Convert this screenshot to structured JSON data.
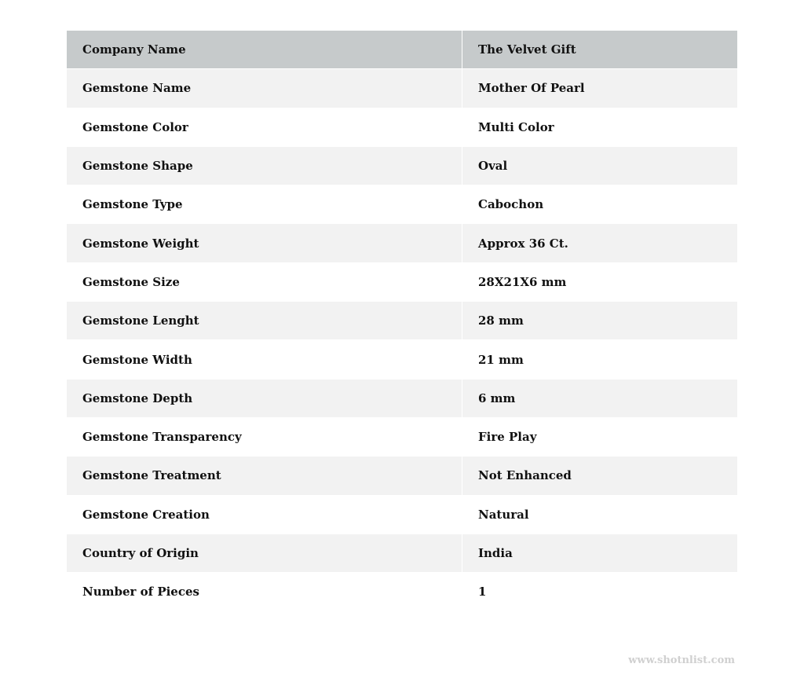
{
  "header": {
    "label": "Company Name",
    "value": "The Velvet Gift"
  },
  "rows": [
    {
      "label": "Gemstone Name",
      "value": "Mother Of Pearl"
    },
    {
      "label": "Gemstone Color",
      "value": "Multi Color"
    },
    {
      "label": "Gemstone Shape",
      "value": "Oval"
    },
    {
      "label": "Gemstone Type",
      "value": "Cabochon"
    },
    {
      "label": "Gemstone Weight",
      "value": "Approx 36 Ct."
    },
    {
      "label": "Gemstone Size",
      "value": "28X21X6 mm"
    },
    {
      "label": "Gemstone Lenght",
      "value": "28 mm"
    },
    {
      "label": "Gemstone Width",
      "value": "21 mm"
    },
    {
      "label": "Gemstone Depth",
      "value": "6 mm"
    },
    {
      "label": "Gemstone Transparency",
      "value": "Fire Play"
    },
    {
      "label": "Gemstone Treatment",
      "value": "Not Enhanced"
    },
    {
      "label": "Gemstone Creation",
      "value": "Natural"
    },
    {
      "label": "Country of Origin",
      "value": "India"
    },
    {
      "label": "Number of Pieces",
      "value": "1"
    }
  ],
  "watermark": "www.shotnlist.com",
  "colors": {
    "header_bg": "#c6cacb",
    "stripe_bg": "#f2f2f2"
  }
}
